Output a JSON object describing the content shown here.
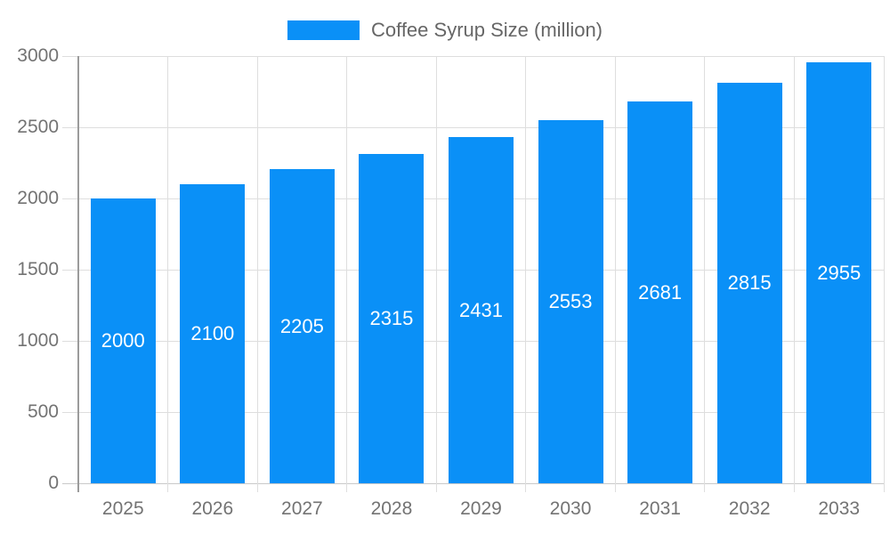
{
  "chart_data": {
    "type": "bar",
    "title": "Coffee Syrup Size (million)",
    "categories": [
      "2025",
      "2026",
      "2027",
      "2028",
      "2029",
      "2030",
      "2031",
      "2032",
      "2033"
    ],
    "values": [
      2000,
      2100,
      2205,
      2315,
      2431,
      2553,
      2681,
      2815,
      2955
    ],
    "series": [
      {
        "name": "Coffee Syrup Size (million)",
        "values": [
          2000,
          2100,
          2205,
          2315,
          2431,
          2553,
          2681,
          2815,
          2955
        ]
      }
    ],
    "xlabel": "",
    "ylabel": "",
    "ylim": [
      0,
      3000
    ],
    "yticks": [
      0,
      500,
      1000,
      1500,
      2000,
      2500,
      3000
    ],
    "grid": true,
    "legend_position": "top-center",
    "value_labels_position": "inside-center",
    "colors": {
      "bar": "#0a90f7",
      "grid": "#dedede",
      "zero_line": "#c9c9c9",
      "axis": "#9b9b9b",
      "tick_label": "#737373",
      "legend_label": "#666666",
      "value_label": "#ffffff",
      "background": "#ffffff"
    }
  }
}
